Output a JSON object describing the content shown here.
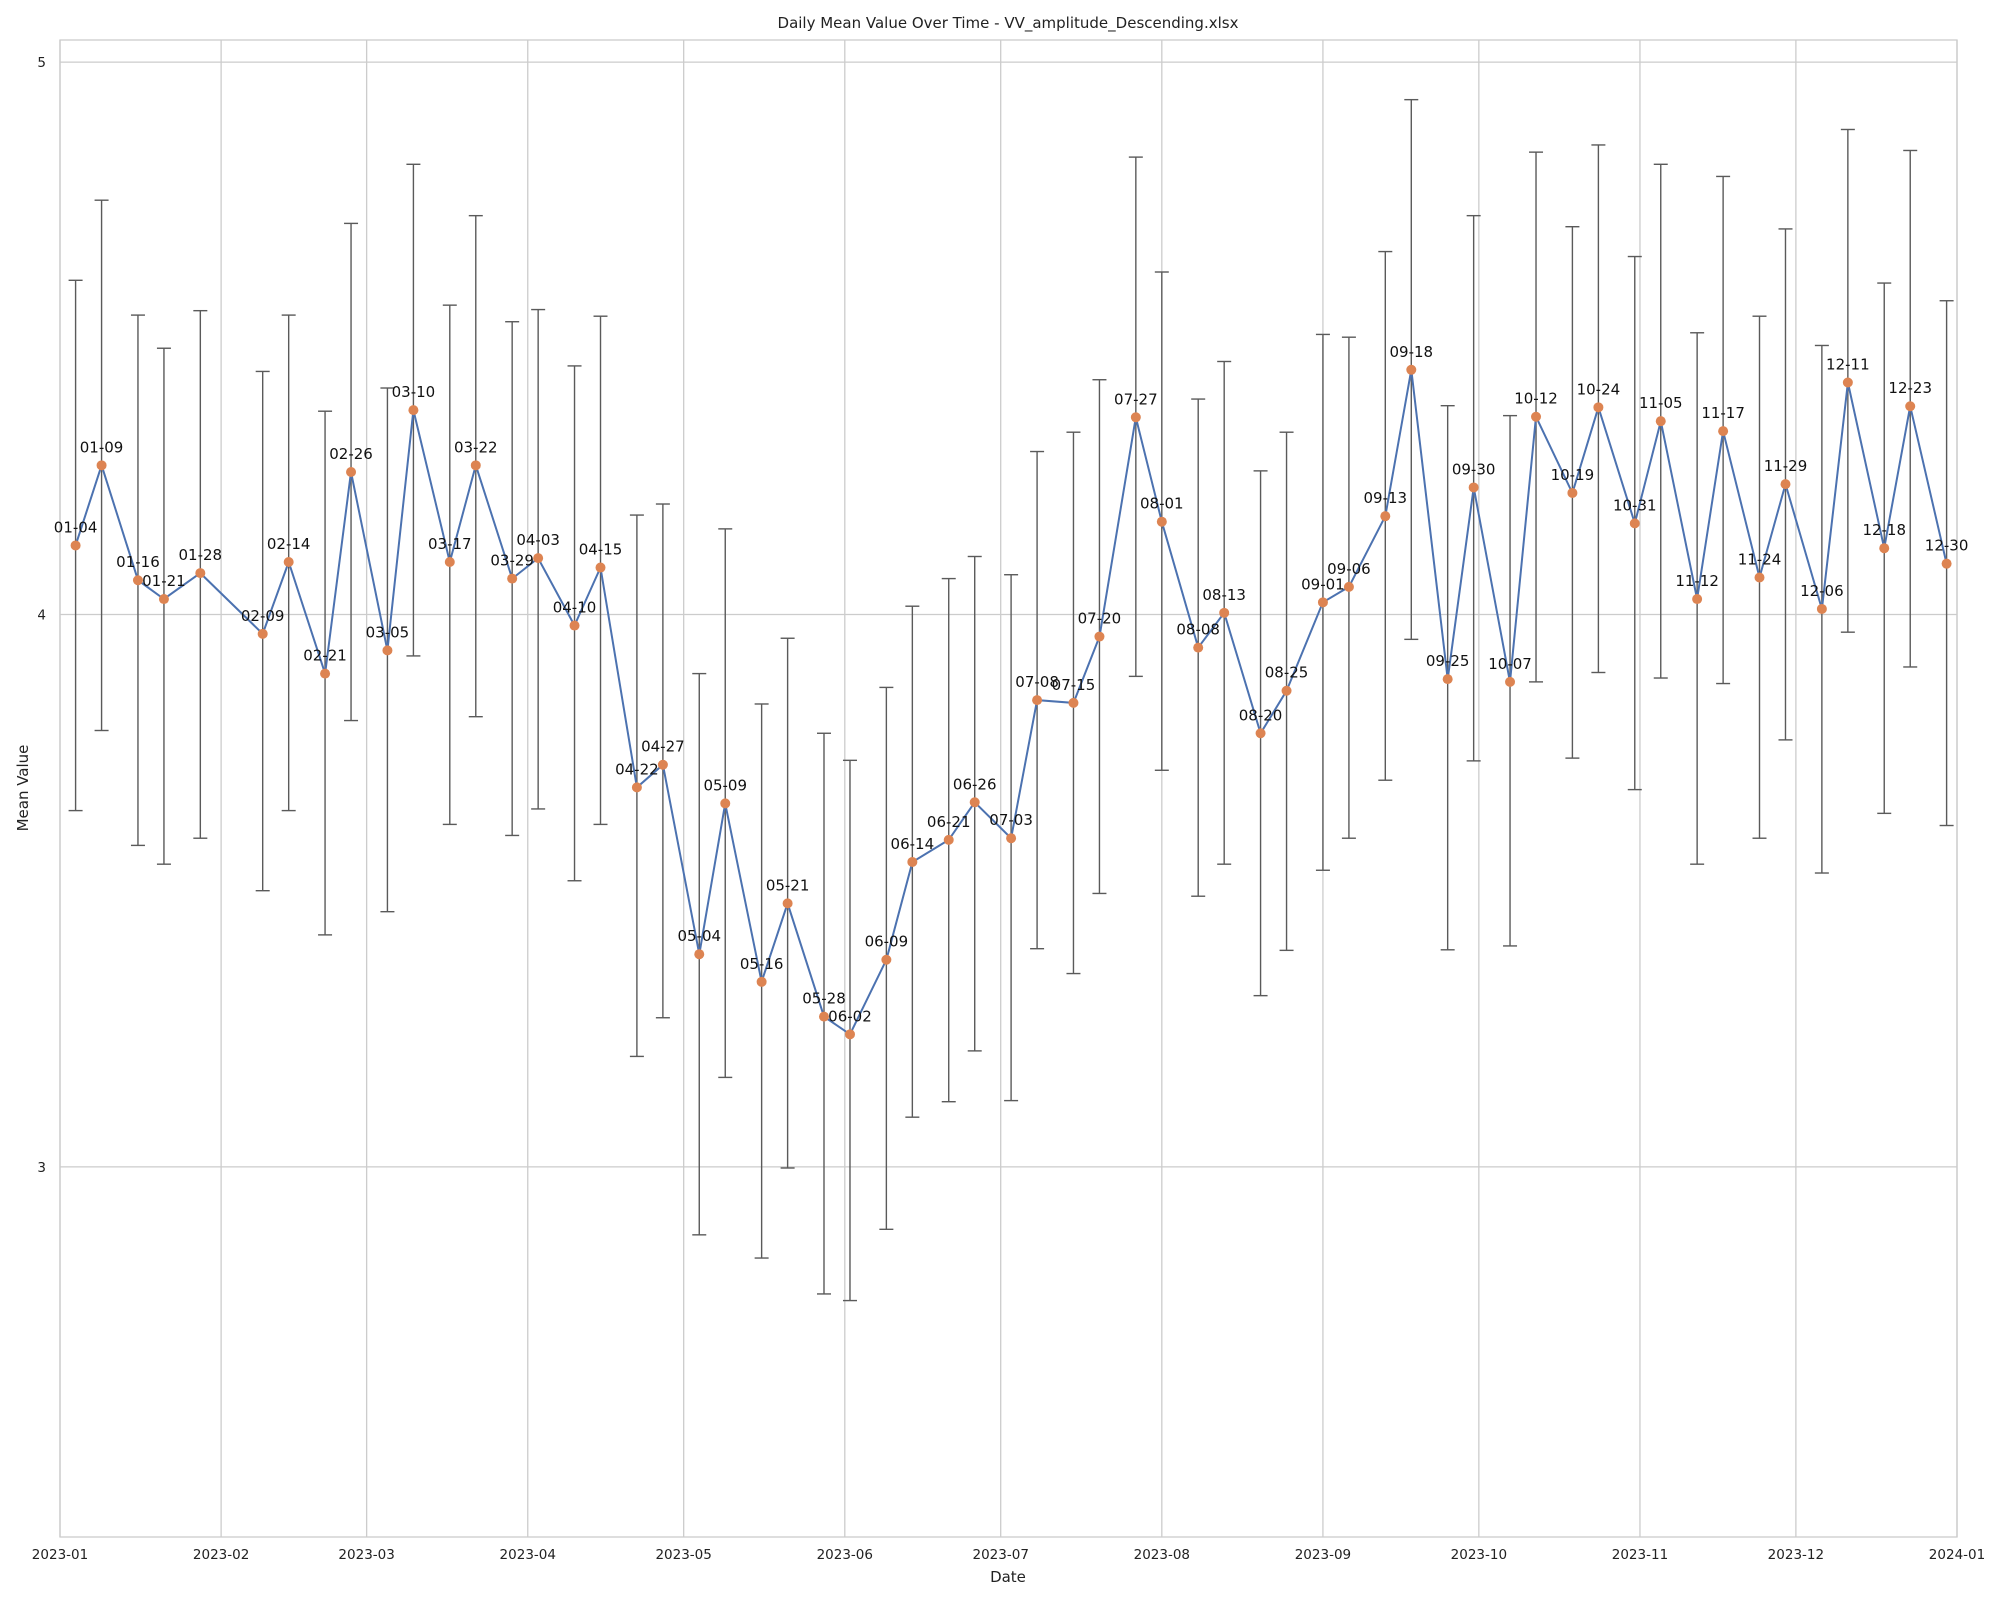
{
  "chart_data": {
    "type": "line",
    "title": "Daily Mean Value Over Time - VV_amplitude_Descending.xlsx",
    "xlabel": "Date",
    "ylabel": "Mean Value",
    "xlim": [
      "2023-01-01",
      "2024-01-01"
    ],
    "ylim": [
      2.33,
      5.04
    ],
    "x_ticks": [
      "2023-01",
      "2023-02",
      "2023-03",
      "2023-04",
      "2023-05",
      "2023-06",
      "2023-07",
      "2023-08",
      "2023-09",
      "2023-10",
      "2023-11",
      "2023-12",
      "2024-01"
    ],
    "y_ticks": [
      "3",
      "4",
      "5"
    ],
    "y_tick_values": [
      3,
      4,
      5
    ],
    "grid": true,
    "colors": {
      "line": "#4c72b0",
      "marker": "#dd8452",
      "errorbar": "#5a5a5a",
      "grid": "#cccccc"
    },
    "points": [
      {
        "x": "2023-01-04",
        "label": "01-04",
        "y": 4.125,
        "lo": 3.645,
        "hi": 4.605
      },
      {
        "x": "2023-01-09",
        "label": "01-09",
        "y": 4.27,
        "lo": 3.79,
        "hi": 4.75
      },
      {
        "x": "2023-01-16",
        "label": "01-16",
        "y": 4.062,
        "lo": 3.582,
        "hi": 4.542
      },
      {
        "x": "2023-01-21",
        "label": "01-21",
        "y": 4.028,
        "lo": 3.548,
        "hi": 4.482
      },
      {
        "x": "2023-01-28",
        "label": "01-28",
        "y": 4.075,
        "lo": 3.595,
        "hi": 4.55
      },
      {
        "x": "2023-02-09",
        "label": "02-09",
        "y": 3.965,
        "lo": 3.5,
        "hi": 4.44
      },
      {
        "x": "2023-02-14",
        "label": "02-14",
        "y": 4.095,
        "lo": 3.645,
        "hi": 4.542
      },
      {
        "x": "2023-02-21",
        "label": "02-21",
        "y": 3.893,
        "lo": 3.42,
        "hi": 4.368
      },
      {
        "x": "2023-02-26",
        "label": "02-26",
        "y": 4.258,
        "lo": 3.808,
        "hi": 4.708
      },
      {
        "x": "2023-03-05",
        "label": "03-05",
        "y": 3.935,
        "lo": 3.462,
        "hi": 4.41
      },
      {
        "x": "2023-03-10",
        "label": "03-10",
        "y": 4.37,
        "lo": 3.925,
        "hi": 4.815
      },
      {
        "x": "2023-03-17",
        "label": "03-17",
        "y": 4.095,
        "lo": 3.62,
        "hi": 4.56
      },
      {
        "x": "2023-03-22",
        "label": "03-22",
        "y": 4.27,
        "lo": 3.815,
        "hi": 4.722
      },
      {
        "x": "2023-03-29",
        "label": "03-29",
        "y": 4.065,
        "lo": 3.6,
        "hi": 4.53
      },
      {
        "x": "2023-04-03",
        "label": "04-03",
        "y": 4.102,
        "lo": 3.648,
        "hi": 4.552
      },
      {
        "x": "2023-04-10",
        "label": "04-10",
        "y": 3.98,
        "lo": 3.518,
        "hi": 4.45
      },
      {
        "x": "2023-04-15",
        "label": "04-15",
        "y": 4.085,
        "lo": 3.62,
        "hi": 4.54
      },
      {
        "x": "2023-04-22",
        "label": "04-22",
        "y": 3.687,
        "lo": 3.2,
        "hi": 4.18
      },
      {
        "x": "2023-04-27",
        "label": "04-27",
        "y": 3.728,
        "lo": 3.27,
        "hi": 4.2
      },
      {
        "x": "2023-05-04",
        "label": "05-04",
        "y": 3.385,
        "lo": 2.877,
        "hi": 3.893
      },
      {
        "x": "2023-05-09",
        "label": "05-09",
        "y": 3.658,
        "lo": 3.162,
        "hi": 4.155
      },
      {
        "x": "2023-05-16",
        "label": "05-16",
        "y": 3.335,
        "lo": 2.835,
        "hi": 3.838
      },
      {
        "x": "2023-05-21",
        "label": "05-21",
        "y": 3.477,
        "lo": 2.998,
        "hi": 3.957
      },
      {
        "x": "2023-05-28",
        "label": "05-28",
        "y": 3.272,
        "lo": 2.77,
        "hi": 3.785
      },
      {
        "x": "2023-06-02",
        "label": "06-02",
        "y": 3.24,
        "lo": 2.758,
        "hi": 3.736
      },
      {
        "x": "2023-06-09",
        "label": "06-09",
        "y": 3.375,
        "lo": 2.887,
        "hi": 3.868
      },
      {
        "x": "2023-06-14",
        "label": "06-14",
        "y": 3.552,
        "lo": 3.09,
        "hi": 4.015
      },
      {
        "x": "2023-06-21",
        "label": "06-21",
        "y": 3.592,
        "lo": 3.118,
        "hi": 4.065
      },
      {
        "x": "2023-06-26",
        "label": "06-26",
        "y": 3.66,
        "lo": 3.21,
        "hi": 4.105
      },
      {
        "x": "2023-07-03",
        "label": "07-03",
        "y": 3.595,
        "lo": 3.12,
        "hi": 4.072
      },
      {
        "x": "2023-07-08",
        "label": "07-08",
        "y": 3.845,
        "lo": 3.395,
        "hi": 4.295
      },
      {
        "x": "2023-07-15",
        "label": "07-15",
        "y": 3.84,
        "lo": 3.35,
        "hi": 4.33
      },
      {
        "x": "2023-07-20",
        "label": "07-20",
        "y": 3.96,
        "lo": 3.495,
        "hi": 4.425
      },
      {
        "x": "2023-07-27",
        "label": "07-27",
        "y": 4.357,
        "lo": 3.888,
        "hi": 4.828
      },
      {
        "x": "2023-08-01",
        "label": "08-01",
        "y": 4.168,
        "lo": 3.718,
        "hi": 4.62
      },
      {
        "x": "2023-08-08",
        "label": "08-08",
        "y": 3.94,
        "lo": 3.49,
        "hi": 4.39
      },
      {
        "x": "2023-08-13",
        "label": "08-13",
        "y": 4.003,
        "lo": 3.548,
        "hi": 4.458
      },
      {
        "x": "2023-08-20",
        "label": "08-20",
        "y": 3.785,
        "lo": 3.31,
        "hi": 4.26
      },
      {
        "x": "2023-08-25",
        "label": "08-25",
        "y": 3.862,
        "lo": 3.392,
        "hi": 4.33
      },
      {
        "x": "2023-09-01",
        "label": "09-01",
        "y": 4.022,
        "lo": 3.537,
        "hi": 4.507
      },
      {
        "x": "2023-09-06",
        "label": "09-06",
        "y": 4.05,
        "lo": 3.595,
        "hi": 4.502
      },
      {
        "x": "2023-09-13",
        "label": "09-13",
        "y": 4.178,
        "lo": 3.7,
        "hi": 4.657
      },
      {
        "x": "2023-09-18",
        "label": "09-18",
        "y": 4.443,
        "lo": 3.955,
        "hi": 4.932
      },
      {
        "x": "2023-09-25",
        "label": "09-25",
        "y": 3.883,
        "lo": 3.393,
        "hi": 4.378
      },
      {
        "x": "2023-09-30",
        "label": "09-30",
        "y": 4.23,
        "lo": 3.735,
        "hi": 4.722
      },
      {
        "x": "2023-10-07",
        "label": "10-07",
        "y": 3.878,
        "lo": 3.4,
        "hi": 4.36
      },
      {
        "x": "2023-10-12",
        "label": "10-12",
        "y": 4.358,
        "lo": 3.878,
        "hi": 4.837
      },
      {
        "x": "2023-10-19",
        "label": "10-19",
        "y": 4.22,
        "lo": 3.74,
        "hi": 4.702
      },
      {
        "x": "2023-10-24",
        "label": "10-24",
        "y": 4.375,
        "lo": 3.895,
        "hi": 4.85
      },
      {
        "x": "2023-10-31",
        "label": "10-31",
        "y": 4.165,
        "lo": 3.683,
        "hi": 4.648
      },
      {
        "x": "2023-11-05",
        "label": "11-05",
        "y": 4.35,
        "lo": 3.885,
        "hi": 4.815
      },
      {
        "x": "2023-11-12",
        "label": "11-12",
        "y": 4.028,
        "lo": 3.548,
        "hi": 4.51
      },
      {
        "x": "2023-11-17",
        "label": "11-17",
        "y": 4.332,
        "lo": 3.875,
        "hi": 4.793
      },
      {
        "x": "2023-11-24",
        "label": "11-24",
        "y": 4.067,
        "lo": 3.595,
        "hi": 4.54
      },
      {
        "x": "2023-11-29",
        "label": "11-29",
        "y": 4.236,
        "lo": 3.773,
        "hi": 4.698
      },
      {
        "x": "2023-12-06",
        "label": "12-06",
        "y": 4.01,
        "lo": 3.532,
        "hi": 4.487
      },
      {
        "x": "2023-12-11",
        "label": "12-11",
        "y": 4.42,
        "lo": 3.968,
        "hi": 4.878
      },
      {
        "x": "2023-12-18",
        "label": "12-18",
        "y": 4.12,
        "lo": 3.64,
        "hi": 4.6
      },
      {
        "x": "2023-12-23",
        "label": "12-23",
        "y": 4.377,
        "lo": 3.905,
        "hi": 4.84
      },
      {
        "x": "2023-12-30",
        "label": "12-30",
        "y": 4.092,
        "lo": 3.618,
        "hi": 4.568
      }
    ]
  }
}
